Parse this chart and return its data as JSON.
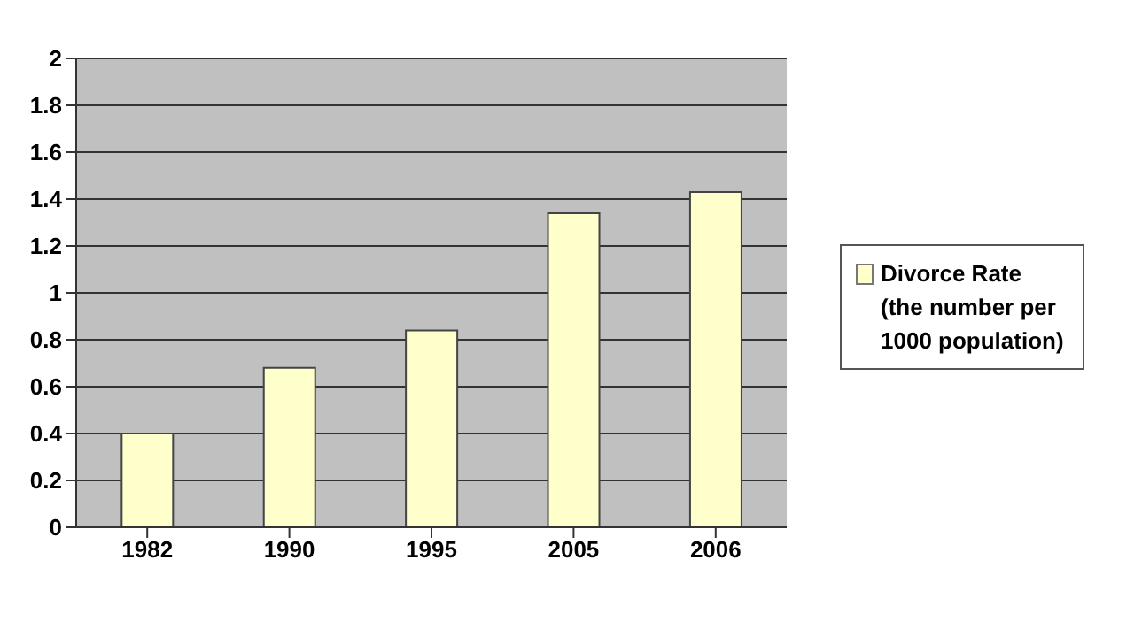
{
  "chart_data": {
    "type": "bar",
    "categories": [
      "1982",
      "1990",
      "1995",
      "2005",
      "2006"
    ],
    "series": [
      {
        "name": "Divorce Rate (the number per 1000 population)",
        "color": "#ffffcc",
        "values": [
          0.4,
          0.68,
          0.84,
          1.34,
          1.43
        ]
      }
    ],
    "ylim": [
      0,
      2
    ],
    "yticks": [
      0,
      0.2,
      0.4,
      0.6,
      0.8,
      1,
      1.2,
      1.4,
      1.6,
      1.8,
      2
    ],
    "grid": "y",
    "legend": "right"
  }
}
